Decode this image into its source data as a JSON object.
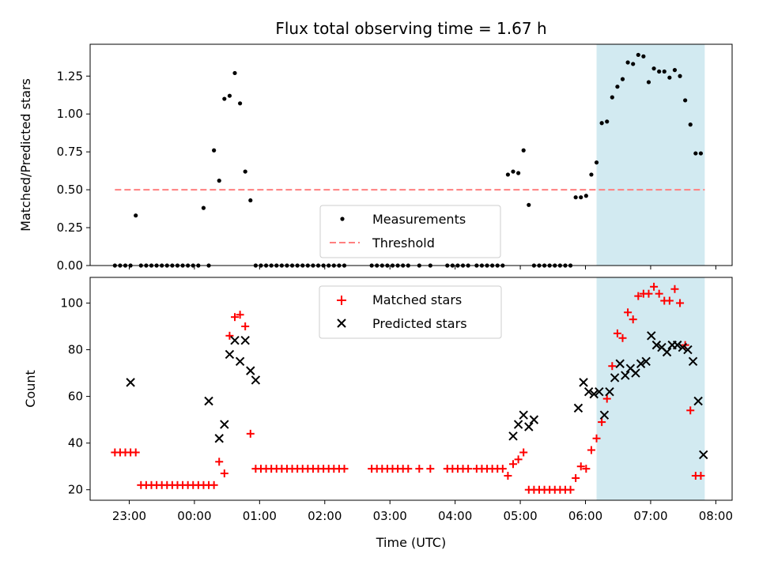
{
  "title": "Flux total observing time = 1.67 h",
  "colors": {
    "highlight": "#add8e6",
    "measurement": "#000000",
    "threshold": "#ff7f7f",
    "matched": "#ff0000",
    "predicted": "#000000"
  },
  "chart_data": [
    {
      "type": "scatter",
      "ylabel": "Matched/Predicted stars",
      "xlim": [
        -1.6,
        8.25
      ],
      "ylim": [
        0,
        1.46
      ],
      "yticks": [
        0.0,
        0.25,
        0.5,
        0.75,
        1.0,
        1.25
      ],
      "ytick_labels": [
        "0.00",
        "0.25",
        "0.50",
        "0.75",
        "1.00",
        "1.25"
      ],
      "highlight_span_hours": [
        6.17,
        7.83
      ],
      "legend": {
        "position": "lower center",
        "entries": [
          "Measurements",
          "Threshold"
        ]
      },
      "threshold": {
        "name": "Threshold",
        "value": 0.5,
        "x_range": [
          -1.22,
          7.83
        ],
        "style": "dashed"
      },
      "measurements": {
        "name": "Measurements",
        "x": [
          -1.22,
          -1.14,
          -1.06,
          -0.98,
          -0.9,
          -0.82,
          -0.74,
          -0.66,
          -0.58,
          -0.5,
          -0.42,
          -0.34,
          -0.26,
          -0.18,
          -0.1,
          -0.02,
          0.06,
          0.14,
          0.22,
          0.3,
          0.38,
          0.46,
          0.54,
          0.62,
          0.7,
          0.78,
          0.86,
          0.94,
          1.02,
          1.1,
          1.18,
          1.26,
          1.34,
          1.42,
          1.5,
          1.58,
          1.66,
          1.74,
          1.82,
          1.9,
          1.98,
          2.06,
          2.14,
          2.22,
          2.3,
          2.72,
          2.8,
          2.88,
          2.96,
          3.04,
          3.12,
          3.2,
          3.28,
          3.45,
          3.62,
          3.88,
          3.96,
          4.04,
          4.12,
          4.2,
          4.33,
          4.41,
          4.49,
          4.57,
          4.65,
          4.73,
          4.81,
          4.89,
          4.97,
          5.05,
          5.13,
          5.21,
          5.29,
          5.37,
          5.45,
          5.53,
          5.61,
          5.69,
          5.77,
          5.85,
          5.93,
          6.01,
          6.09,
          6.17,
          6.25,
          6.33,
          6.41,
          6.49,
          6.57,
          6.65,
          6.73,
          6.81,
          6.89,
          6.97,
          7.05,
          7.13,
          7.21,
          7.29,
          7.37,
          7.45,
          7.53,
          7.61,
          7.69,
          7.77
        ],
        "y": [
          0,
          0,
          0,
          0,
          0.33,
          0,
          0,
          0,
          0,
          0,
          0,
          0,
          0,
          0,
          0,
          0,
          0,
          0.38,
          0,
          0.76,
          0.56,
          1.1,
          1.12,
          1.27,
          1.07,
          0.62,
          0.43,
          0,
          0,
          0,
          0,
          0,
          0,
          0,
          0,
          0,
          0,
          0,
          0,
          0,
          0,
          0,
          0,
          0,
          0,
          0,
          0,
          0,
          0,
          0,
          0,
          0,
          0,
          0,
          0,
          0,
          0,
          0,
          0,
          0,
          0,
          0,
          0,
          0,
          0,
          0,
          0.6,
          0.62,
          0.61,
          0.76,
          0.4,
          0,
          0,
          0,
          0,
          0,
          0,
          0,
          0,
          0.45,
          0.45,
          0.46,
          0.6,
          0.68,
          0.94,
          0.95,
          1.11,
          1.18,
          1.23,
          1.34,
          1.33,
          1.39,
          1.38,
          1.21,
          1.3,
          1.28,
          1.28,
          1.24,
          1.29,
          1.25,
          1.09,
          0.93,
          0.74,
          0.74
        ]
      }
    },
    {
      "type": "scatter",
      "xlabel": "Time (UTC)",
      "ylabel": "Count",
      "xlim": [
        -1.6,
        8.25
      ],
      "ylim": [
        15.5,
        111
      ],
      "yticks": [
        20,
        40,
        60,
        80,
        100
      ],
      "xticks": [
        -1,
        0,
        1,
        2,
        3,
        4,
        5,
        6,
        7,
        8
      ],
      "xtick_labels": [
        "23:00",
        "00:00",
        "01:00",
        "02:00",
        "03:00",
        "04:00",
        "05:00",
        "06:00",
        "07:00",
        "08:00"
      ],
      "highlight_span_hours": [
        6.17,
        7.83
      ],
      "legend": {
        "position": "upper center",
        "entries": [
          "Matched stars",
          "Predicted stars"
        ]
      },
      "series": [
        {
          "name": "Matched stars",
          "marker": "+",
          "x": [
            -1.22,
            -1.14,
            -1.06,
            -0.98,
            -0.9,
            -0.82,
            -0.74,
            -0.66,
            -0.58,
            -0.5,
            -0.42,
            -0.34,
            -0.26,
            -0.18,
            -0.1,
            -0.02,
            0.06,
            0.14,
            0.22,
            0.3,
            0.38,
            0.46,
            0.54,
            0.62,
            0.7,
            0.78,
            0.86,
            0.94,
            1.02,
            1.1,
            1.18,
            1.26,
            1.34,
            1.42,
            1.5,
            1.58,
            1.66,
            1.74,
            1.82,
            1.9,
            1.98,
            2.06,
            2.14,
            2.22,
            2.3,
            2.72,
            2.8,
            2.88,
            2.96,
            3.04,
            3.12,
            3.2,
            3.28,
            3.45,
            3.62,
            3.88,
            3.96,
            4.04,
            4.12,
            4.2,
            4.33,
            4.41,
            4.49,
            4.57,
            4.65,
            4.73,
            4.81,
            4.89,
            4.97,
            5.05,
            5.13,
            5.21,
            5.29,
            5.37,
            5.45,
            5.53,
            5.61,
            5.69,
            5.77,
            5.85,
            5.93,
            6.01,
            6.09,
            6.17,
            6.25,
            6.33,
            6.41,
            6.49,
            6.57,
            6.65,
            6.73,
            6.81,
            6.89,
            6.97,
            7.05,
            7.13,
            7.21,
            7.29,
            7.37,
            7.45,
            7.53,
            7.61,
            7.69,
            7.77
          ],
          "y": [
            36,
            36,
            36,
            36,
            36,
            22,
            22,
            22,
            22,
            22,
            22,
            22,
            22,
            22,
            22,
            22,
            22,
            22,
            22,
            22,
            32,
            27,
            86,
            94,
            95,
            90,
            44,
            29,
            29,
            29,
            29,
            29,
            29,
            29,
            29,
            29,
            29,
            29,
            29,
            29,
            29,
            29,
            29,
            29,
            29,
            29,
            29,
            29,
            29,
            29,
            29,
            29,
            29,
            29,
            29,
            29,
            29,
            29,
            29,
            29,
            29,
            29,
            29,
            29,
            29,
            29,
            26,
            31,
            33,
            36,
            20,
            20,
            20,
            20,
            20,
            20,
            20,
            20,
            20,
            25,
            30,
            29,
            37,
            42,
            49,
            59,
            73,
            87,
            85,
            96,
            93,
            103,
            104,
            104,
            107,
            104,
            101,
            101,
            106,
            100,
            82,
            54,
            26,
            26
          ]
        },
        {
          "name": "Predicted stars",
          "marker": "x",
          "x": [
            -0.98,
            0.22,
            0.38,
            0.46,
            0.54,
            0.62,
            0.7,
            0.78,
            0.86,
            0.94,
            4.89,
            4.97,
            5.05,
            5.13,
            5.21,
            5.89,
            5.97,
            6.05,
            6.13,
            6.21,
            6.29,
            6.37,
            6.45,
            6.53,
            6.61,
            6.69,
            6.77,
            6.85,
            6.93,
            7.01,
            7.09,
            7.17,
            7.25,
            7.33,
            7.41,
            7.49,
            7.57,
            7.65,
            7.73,
            7.81
          ],
          "y": [
            66,
            58,
            42,
            48,
            78,
            84,
            75,
            84,
            71,
            67,
            43,
            48,
            52,
            47,
            50,
            55,
            66,
            62,
            61,
            62,
            52,
            62,
            68,
            74,
            69,
            72,
            70,
            74,
            75,
            86,
            82,
            81,
            79,
            82,
            82,
            81,
            80,
            75,
            58,
            35
          ]
        }
      ]
    }
  ]
}
